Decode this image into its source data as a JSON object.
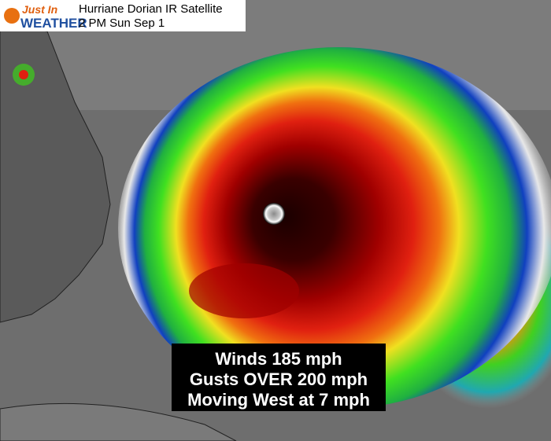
{
  "logo": {
    "line1": "Just In",
    "line2": "WEATHER"
  },
  "header": {
    "title": "Hurriane Dorian IR Satellite",
    "subtitle": "2 PM Sun Sep 1"
  },
  "caption": {
    "lines": [
      "Winds 185 mph",
      "Gusts OVER 200 mph",
      "Moving West at 7 mph"
    ]
  }
}
